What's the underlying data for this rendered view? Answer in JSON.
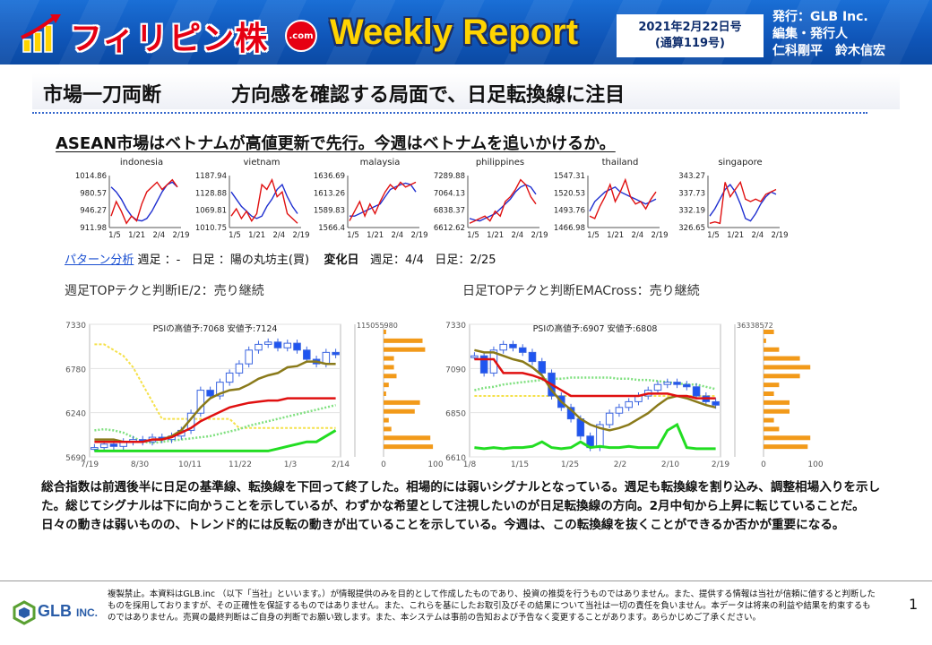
{
  "header": {
    "brand_title": "フィリピン株",
    "brand_com": ".com",
    "weekly_report": "Weekly Report",
    "date_line1": "2021年2月22日号",
    "date_line2": "(通算119号)",
    "publisher_line1": "発行：GLB Inc.",
    "publisher_line2": "編集・発行人",
    "publisher_line3": "仁科剛平　鈴木信宏",
    "colors": {
      "banner": "#1160c4",
      "brand_red": "#e60012",
      "weekly_yellow": "#ffd400"
    }
  },
  "title": {
    "left": "市場一刀両断",
    "right": "方向感を確認する局面で、日足転換線に注目"
  },
  "subhead": "ASEAN市場はベトナムが高値更新で先行。今週はベトナムを追いかけるか。",
  "mini_charts": [
    {
      "name": "indonesia",
      "yticks": [
        "1014.86",
        "980.57",
        "946.27",
        "911.98"
      ],
      "xticks": [
        "1/5",
        "1/21",
        "2/4",
        "2/19"
      ],
      "red": [
        0.2,
        0.5,
        0.3,
        0.05,
        0.2,
        0.1,
        0.45,
        0.7,
        0.8,
        0.9,
        0.75,
        0.85,
        0.95,
        0.8
      ],
      "blue": [
        0.8,
        0.7,
        0.55,
        0.35,
        0.2,
        0.12,
        0.1,
        0.15,
        0.3,
        0.5,
        0.7,
        0.85,
        0.9,
        0.8
      ]
    },
    {
      "name": "vietnam",
      "yticks": [
        "1187.94",
        "1128.88",
        "1069.81",
        "1010.75"
      ],
      "xticks": [
        "1/5",
        "1/21",
        "2/4",
        "2/19"
      ],
      "red": [
        0.2,
        0.35,
        0.15,
        0.3,
        0.1,
        0.25,
        0.85,
        0.75,
        0.95,
        0.6,
        0.7,
        0.25,
        0.15,
        0.05
      ],
      "blue": [
        0.7,
        0.55,
        0.4,
        0.3,
        0.2,
        0.15,
        0.2,
        0.4,
        0.55,
        0.75,
        0.85,
        0.6,
        0.4,
        0.25
      ]
    },
    {
      "name": "malaysia",
      "yticks": [
        "1636.69",
        "1613.26",
        "1589.83",
        "1566.4"
      ],
      "xticks": [
        "1/5",
        "1/21",
        "2/4",
        "2/19"
      ],
      "red": [
        0.1,
        0.3,
        0.5,
        0.2,
        0.45,
        0.25,
        0.5,
        0.7,
        0.85,
        0.75,
        0.9,
        0.8,
        0.85,
        0.9
      ],
      "blue": [
        0.2,
        0.2,
        0.25,
        0.3,
        0.35,
        0.4,
        0.45,
        0.6,
        0.75,
        0.8,
        0.85,
        0.88,
        0.85,
        0.7
      ]
    },
    {
      "name": "philippines",
      "yticks": [
        "7289.88",
        "7064.13",
        "6838.37",
        "6612.62"
      ],
      "xticks": [
        "1/5",
        "1/21",
        "2/4",
        "2/19"
      ],
      "red": [
        0.05,
        0.1,
        0.15,
        0.2,
        0.1,
        0.3,
        0.2,
        0.5,
        0.6,
        0.75,
        0.95,
        0.85,
        0.6,
        0.45
      ],
      "blue": [
        0.15,
        0.12,
        0.1,
        0.15,
        0.2,
        0.25,
        0.35,
        0.45,
        0.55,
        0.7,
        0.8,
        0.85,
        0.8,
        0.65
      ]
    },
    {
      "name": "thailand",
      "yticks": [
        "1547.31",
        "1520.53",
        "1493.76",
        "1466.98"
      ],
      "xticks": [
        "1/5",
        "1/21",
        "2/4",
        "2/19"
      ],
      "red": [
        0.2,
        0.15,
        0.4,
        0.6,
        0.85,
        0.5,
        0.7,
        0.95,
        0.6,
        0.45,
        0.5,
        0.35,
        0.55,
        0.7
      ],
      "blue": [
        0.3,
        0.5,
        0.6,
        0.7,
        0.75,
        0.8,
        0.7,
        0.65,
        0.6,
        0.55,
        0.5,
        0.45,
        0.5,
        0.55
      ]
    },
    {
      "name": "singapore",
      "yticks": [
        "343.27",
        "337.73",
        "332.19",
        "326.65"
      ],
      "xticks": [
        "1/5",
        "1/21",
        "2/4",
        "2/19"
      ],
      "red": [
        0.05,
        0.08,
        0.05,
        0.9,
        0.6,
        0.75,
        0.9,
        0.55,
        0.5,
        0.55,
        0.5,
        0.65,
        0.7,
        0.75
      ],
      "blue": [
        0.2,
        0.35,
        0.55,
        0.75,
        0.85,
        0.7,
        0.45,
        0.15,
        0.1,
        0.25,
        0.45,
        0.6,
        0.7,
        0.65
      ]
    }
  ],
  "pattern": {
    "link": "パターン分析",
    "weekly": "週足 ：-",
    "daily": "日足 ：陽の丸坊主(買)",
    "change_label": "変化日",
    "weekly_change": "週足：4/4",
    "daily_change": "日足：2/25"
  },
  "big_charts": [
    {
      "title": "週足TOPテクと判断IE/2：売り継続",
      "psi": "PSIの高値予:7068 安値予:7124",
      "yticks": [
        "7330",
        "6780",
        "6240",
        "5690"
      ],
      "xticks": [
        "7/19",
        "8/30",
        "10/11",
        "11/22",
        "1/3",
        "2/14"
      ],
      "vol_label": "115055980",
      "hist_ticks": [
        "0",
        "100"
      ]
    },
    {
      "title": "日足TOPテクと判断EMACross：売り継続",
      "psi": "PSIの高値予:6907 安値予:6808",
      "yticks": [
        "7330",
        "7090",
        "6850",
        "6610"
      ],
      "xticks": [
        "1/8",
        "1/15",
        "1/25",
        "2/2",
        "2/10",
        "2/19"
      ],
      "vol_label": "36338572",
      "hist_ticks": [
        "0",
        "100"
      ]
    }
  ],
  "paragraph": "総合指数は前週後半に日足の基準線、転換線を下回って終了した。相場的には弱いシグナルとなっている。週足も転換線を割り込み、調整相場入りを示した。総じてシグナルは下に向かうことを示しているが、わずかな希望として注視したいのが日足転換線の方向。2月中旬から上昇に転じていることだ。日々の動きは弱いものの、トレンド的には反転の動きが出ていることを示している。今週は、この転換線を抜くことができるか否かが重要になる。",
  "footer": {
    "logo_text": "GLB",
    "logo_suffix": "INC.",
    "disclaimer": "複製禁止。本資料はGLB.inc （以下「当社」といいます。）が情報提供のみを目的として作成したものであり、投資の推奨を行うものではありません。また、提供する情報は当社が信頼に値すると判断したものを採用しておりますが、その正確性を保証するものではありません。また、これらを基にしたお取引及びその結果について当社は一切の責任を負いません。本データは将来の利益や結果を約束するものではありません。売買の最終判断はご自身の判断でお願い致します。また、本システムは事前の告知および予告なく変更することがあります。あらかじめご了承ください。",
    "page_number": "1"
  }
}
